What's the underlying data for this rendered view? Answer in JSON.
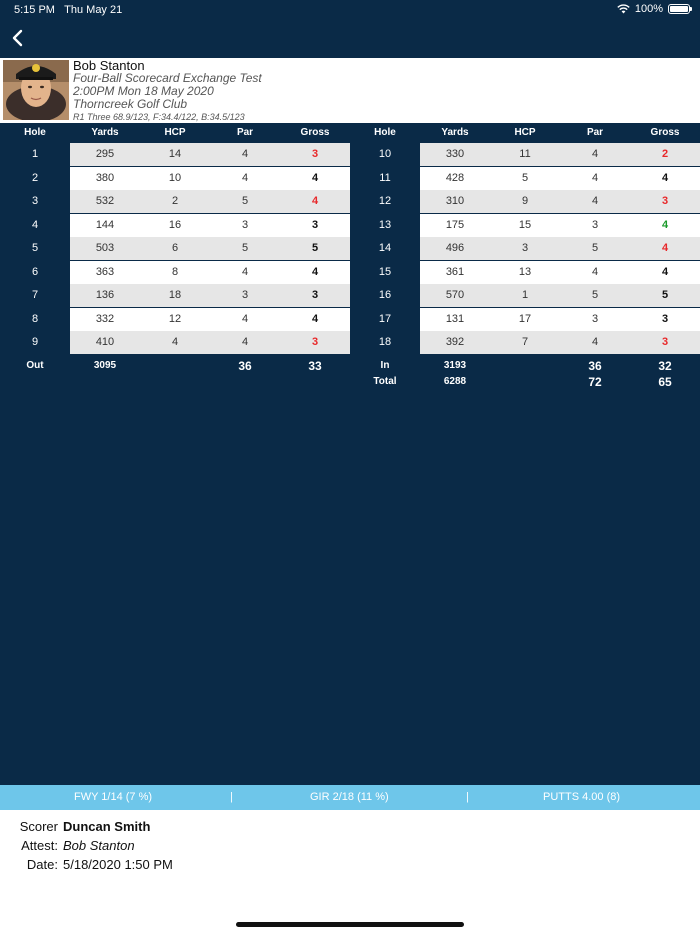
{
  "status": {
    "time": "5:15 PM",
    "date": "Thu May 21",
    "battery": "100%"
  },
  "player": {
    "name": "Bob Stanton",
    "event": "Four-Ball Scorecard Exchange Test",
    "datetime": "2:00PM Mon 18 May 2020",
    "course": "Thorncreek Golf Club",
    "round_info": "R1 Three 68.9/123, F:34.4/122, B:34.5/123"
  },
  "headers": [
    "Hole",
    "Yards",
    "HCP",
    "Par",
    "Gross"
  ],
  "front": [
    {
      "hole": "1",
      "yards": "295",
      "hcp": "14",
      "par": "4",
      "gross": "3",
      "color": "#e8282a"
    },
    {
      "hole": "2",
      "yards": "380",
      "hcp": "10",
      "par": "4",
      "gross": "4",
      "color": "#111111"
    },
    {
      "hole": "3",
      "yards": "532",
      "hcp": "2",
      "par": "5",
      "gross": "4",
      "color": "#e8282a"
    },
    {
      "hole": "4",
      "yards": "144",
      "hcp": "16",
      "par": "3",
      "gross": "3",
      "color": "#111111"
    },
    {
      "hole": "5",
      "yards": "503",
      "hcp": "6",
      "par": "5",
      "gross": "5",
      "color": "#111111"
    },
    {
      "hole": "6",
      "yards": "363",
      "hcp": "8",
      "par": "4",
      "gross": "4",
      "color": "#111111"
    },
    {
      "hole": "7",
      "yards": "136",
      "hcp": "18",
      "par": "3",
      "gross": "3",
      "color": "#111111"
    },
    {
      "hole": "8",
      "yards": "332",
      "hcp": "12",
      "par": "4",
      "gross": "4",
      "color": "#111111"
    },
    {
      "hole": "9",
      "yards": "410",
      "hcp": "4",
      "par": "4",
      "gross": "3",
      "color": "#e8282a"
    }
  ],
  "back": [
    {
      "hole": "10",
      "yards": "330",
      "hcp": "11",
      "par": "4",
      "gross": "2",
      "color": "#e8282a"
    },
    {
      "hole": "11",
      "yards": "428",
      "hcp": "5",
      "par": "4",
      "gross": "4",
      "color": "#111111"
    },
    {
      "hole": "12",
      "yards": "310",
      "hcp": "9",
      "par": "4",
      "gross": "3",
      "color": "#e8282a"
    },
    {
      "hole": "13",
      "yards": "175",
      "hcp": "15",
      "par": "3",
      "gross": "4",
      "color": "#1a9a2a"
    },
    {
      "hole": "14",
      "yards": "496",
      "hcp": "3",
      "par": "5",
      "gross": "4",
      "color": "#e8282a"
    },
    {
      "hole": "15",
      "yards": "361",
      "hcp": "13",
      "par": "4",
      "gross": "4",
      "color": "#111111"
    },
    {
      "hole": "16",
      "yards": "570",
      "hcp": "1",
      "par": "5",
      "gross": "5",
      "color": "#111111"
    },
    {
      "hole": "17",
      "yards": "131",
      "hcp": "17",
      "par": "3",
      "gross": "3",
      "color": "#111111"
    },
    {
      "hole": "18",
      "yards": "392",
      "hcp": "7",
      "par": "4",
      "gross": "3",
      "color": "#e8282a"
    }
  ],
  "totals": {
    "out": {
      "label": "Out",
      "yards": "3095",
      "par": "36",
      "gross": "33"
    },
    "in": {
      "label": "In",
      "yards": "3193",
      "par": "36",
      "gross": "32"
    },
    "total": {
      "label": "Total",
      "yards": "6288",
      "par": "72",
      "gross": "65"
    }
  },
  "stats": {
    "fwy": "FWY 1/14 (7 %)",
    "gir": "GIR 2/18 (11 %)",
    "putts": "PUTTS 4.00 (8)",
    "sep": "|"
  },
  "footer": {
    "scorer_label": "Scorer",
    "scorer": "Duncan Smith",
    "attest_label": "Attest:",
    "attest": "Bob Stanton",
    "date_label": "Date:",
    "date": "5/18/2020 1:50 PM"
  },
  "icons": {
    "back": "chevron-left-icon",
    "wifi": "wifi-icon",
    "battery": "battery-icon"
  }
}
